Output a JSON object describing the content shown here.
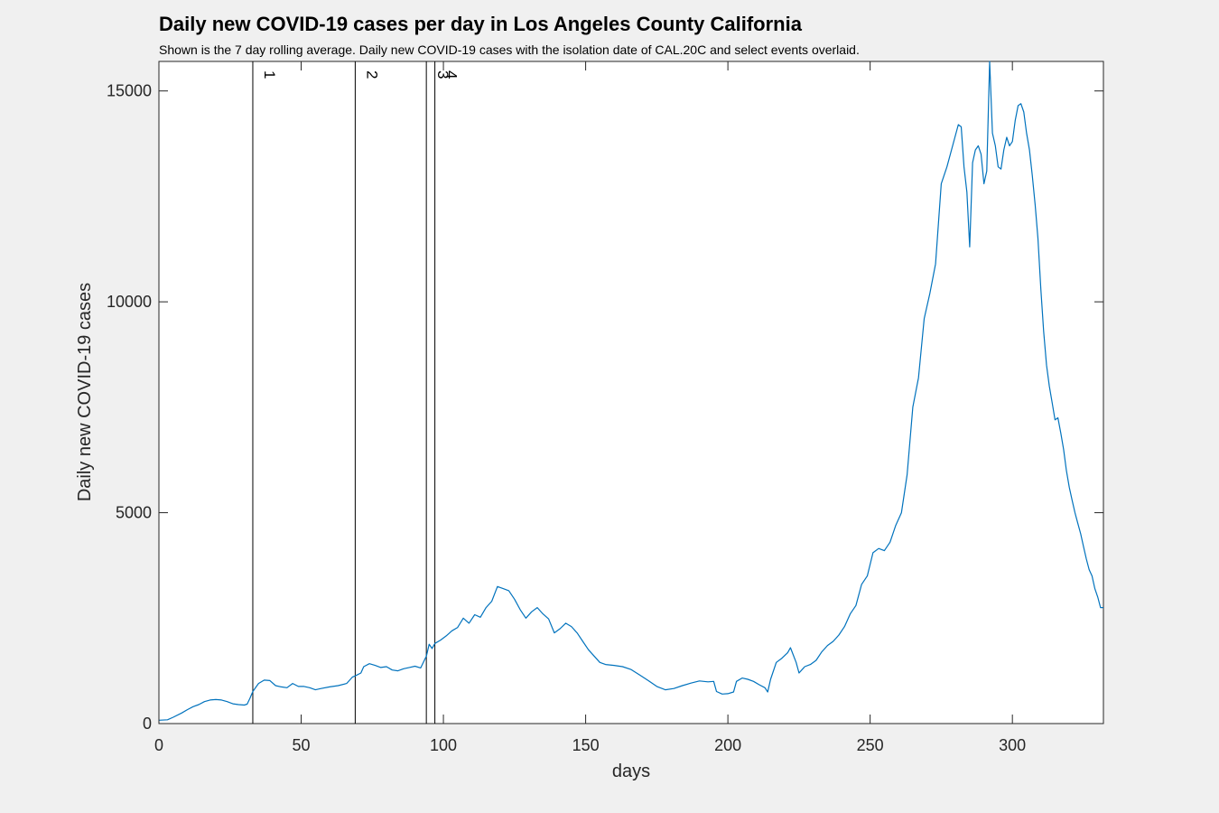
{
  "chart_data": {
    "type": "line",
    "title": "Daily new COVID-19 cases per day in Los Angeles County California",
    "subtitle": "Shown is the 7 day rolling average. Daily new COVID-19 cases with the isolation date of CAL.20C and select events overlaid.",
    "xlabel": "days",
    "ylabel": "Daily new COVID-19 cases",
    "xlim": [
      0,
      332
    ],
    "ylim": [
      0,
      15700
    ],
    "xticks": [
      0,
      50,
      100,
      150,
      200,
      250,
      300
    ],
    "yticks": [
      0,
      5000,
      10000,
      15000
    ],
    "grid": false,
    "line_color": "#0072bd",
    "events": [
      {
        "label": "1",
        "x": 33
      },
      {
        "label": "2",
        "x": 69
      },
      {
        "label": "3",
        "x": 94
      },
      {
        "label": "4",
        "x": 97
      }
    ],
    "series": [
      {
        "points": [
          [
            0,
            80
          ],
          [
            3,
            90
          ],
          [
            5,
            150
          ],
          [
            8,
            250
          ],
          [
            10,
            330
          ],
          [
            12,
            400
          ],
          [
            14,
            450
          ],
          [
            16,
            520
          ],
          [
            18,
            560
          ],
          [
            20,
            570
          ],
          [
            22,
            560
          ],
          [
            24,
            520
          ],
          [
            26,
            470
          ],
          [
            28,
            450
          ],
          [
            30,
            440
          ],
          [
            31,
            460
          ],
          [
            32,
            600
          ],
          [
            33,
            760
          ],
          [
            35,
            950
          ],
          [
            37,
            1030
          ],
          [
            39,
            1020
          ],
          [
            41,
            900
          ],
          [
            43,
            870
          ],
          [
            45,
            850
          ],
          [
            47,
            950
          ],
          [
            49,
            880
          ],
          [
            51,
            880
          ],
          [
            53,
            850
          ],
          [
            55,
            800
          ],
          [
            57,
            830
          ],
          [
            60,
            870
          ],
          [
            63,
            900
          ],
          [
            66,
            950
          ],
          [
            68,
            1100
          ],
          [
            69,
            1130
          ],
          [
            71,
            1200
          ],
          [
            72,
            1350
          ],
          [
            74,
            1420
          ],
          [
            76,
            1380
          ],
          [
            78,
            1330
          ],
          [
            80,
            1350
          ],
          [
            82,
            1270
          ],
          [
            84,
            1250
          ],
          [
            86,
            1300
          ],
          [
            88,
            1330
          ],
          [
            90,
            1360
          ],
          [
            92,
            1320
          ],
          [
            94,
            1600
          ],
          [
            95,
            1880
          ],
          [
            96,
            1780
          ],
          [
            97,
            1900
          ],
          [
            99,
            1980
          ],
          [
            101,
            2080
          ],
          [
            103,
            2200
          ],
          [
            105,
            2280
          ],
          [
            107,
            2500
          ],
          [
            109,
            2380
          ],
          [
            111,
            2580
          ],
          [
            113,
            2520
          ],
          [
            115,
            2750
          ],
          [
            117,
            2900
          ],
          [
            119,
            3250
          ],
          [
            121,
            3200
          ],
          [
            123,
            3150
          ],
          [
            125,
            2950
          ],
          [
            127,
            2700
          ],
          [
            129,
            2500
          ],
          [
            131,
            2650
          ],
          [
            133,
            2750
          ],
          [
            135,
            2600
          ],
          [
            137,
            2480
          ],
          [
            139,
            2150
          ],
          [
            141,
            2250
          ],
          [
            143,
            2380
          ],
          [
            145,
            2300
          ],
          [
            147,
            2150
          ],
          [
            149,
            1950
          ],
          [
            151,
            1750
          ],
          [
            153,
            1600
          ],
          [
            155,
            1450
          ],
          [
            157,
            1400
          ],
          [
            160,
            1380
          ],
          [
            163,
            1350
          ],
          [
            166,
            1280
          ],
          [
            169,
            1150
          ],
          [
            172,
            1020
          ],
          [
            175,
            880
          ],
          [
            178,
            800
          ],
          [
            181,
            830
          ],
          [
            184,
            900
          ],
          [
            187,
            960
          ],
          [
            190,
            1010
          ],
          [
            193,
            990
          ],
          [
            195,
            1000
          ],
          [
            196,
            760
          ],
          [
            198,
            700
          ],
          [
            200,
            710
          ],
          [
            202,
            750
          ],
          [
            203,
            1000
          ],
          [
            205,
            1080
          ],
          [
            207,
            1050
          ],
          [
            209,
            1000
          ],
          [
            211,
            920
          ],
          [
            213,
            850
          ],
          [
            214,
            750
          ],
          [
            215,
            1050
          ],
          [
            217,
            1450
          ],
          [
            219,
            1550
          ],
          [
            221,
            1680
          ],
          [
            222,
            1800
          ],
          [
            224,
            1450
          ],
          [
            225,
            1200
          ],
          [
            227,
            1350
          ],
          [
            229,
            1400
          ],
          [
            231,
            1500
          ],
          [
            233,
            1700
          ],
          [
            235,
            1850
          ],
          [
            237,
            1950
          ],
          [
            239,
            2100
          ],
          [
            241,
            2300
          ],
          [
            243,
            2600
          ],
          [
            245,
            2800
          ],
          [
            247,
            3300
          ],
          [
            249,
            3500
          ],
          [
            251,
            4050
          ],
          [
            253,
            4150
          ],
          [
            255,
            4100
          ],
          [
            257,
            4300
          ],
          [
            259,
            4700
          ],
          [
            261,
            5000
          ],
          [
            263,
            5900
          ],
          [
            265,
            7500
          ],
          [
            267,
            8200
          ],
          [
            269,
            9600
          ],
          [
            271,
            10200
          ],
          [
            273,
            10900
          ],
          [
            275,
            12800
          ],
          [
            277,
            13200
          ],
          [
            279,
            13700
          ],
          [
            281,
            14200
          ],
          [
            282,
            14150
          ],
          [
            283,
            13200
          ],
          [
            284,
            12600
          ],
          [
            285,
            11300
          ],
          [
            286,
            13300
          ],
          [
            287,
            13600
          ],
          [
            288,
            13700
          ],
          [
            289,
            13500
          ],
          [
            290,
            12800
          ],
          [
            291,
            13100
          ],
          [
            292,
            15700
          ],
          [
            293,
            14000
          ],
          [
            294,
            13700
          ],
          [
            295,
            13200
          ],
          [
            296,
            13150
          ],
          [
            297,
            13600
          ],
          [
            298,
            13900
          ],
          [
            299,
            13700
          ],
          [
            300,
            13800
          ],
          [
            301,
            14300
          ],
          [
            302,
            14650
          ],
          [
            303,
            14700
          ],
          [
            304,
            14500
          ],
          [
            305,
            14000
          ],
          [
            306,
            13600
          ],
          [
            307,
            13000
          ],
          [
            308,
            12300
          ],
          [
            309,
            11500
          ],
          [
            310,
            10300
          ],
          [
            311,
            9300
          ],
          [
            312,
            8500
          ],
          [
            313,
            8000
          ],
          [
            314,
            7600
          ],
          [
            315,
            7200
          ],
          [
            316,
            7250
          ],
          [
            317,
            6900
          ],
          [
            318,
            6500
          ],
          [
            319,
            6000
          ],
          [
            320,
            5600
          ],
          [
            321,
            5300
          ],
          [
            322,
            5000
          ],
          [
            323,
            4750
          ],
          [
            324,
            4500
          ],
          [
            325,
            4200
          ],
          [
            326,
            3900
          ],
          [
            327,
            3650
          ],
          [
            328,
            3500
          ],
          [
            329,
            3200
          ],
          [
            330,
            3000
          ],
          [
            331,
            2750
          ],
          [
            332,
            2750
          ]
        ]
      }
    ]
  }
}
